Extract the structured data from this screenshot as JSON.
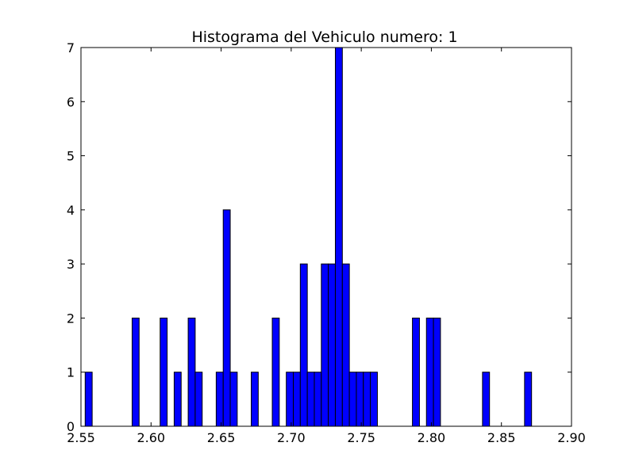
{
  "chart_data": {
    "type": "bar",
    "title": "Histograma del Vehiculo numero: 1",
    "xlabel": "",
    "ylabel": "",
    "xlim": [
      2.55,
      2.9
    ],
    "ylim": [
      0,
      7
    ],
    "x_ticks": [
      "2.55",
      "2.60",
      "2.65",
      "2.70",
      "2.75",
      "2.80",
      "2.85",
      "2.90"
    ],
    "y_ticks": [
      "0",
      "1",
      "2",
      "3",
      "4",
      "5",
      "6",
      "7"
    ],
    "bar_color": "#0000ff",
    "grid": false,
    "bin_width": 0.005,
    "bins": [
      {
        "x": 2.553,
        "count": 1
      },
      {
        "x": 2.5865,
        "count": 2
      },
      {
        "x": 2.6065,
        "count": 2
      },
      {
        "x": 2.6165,
        "count": 1
      },
      {
        "x": 2.6265,
        "count": 2
      },
      {
        "x": 2.6315,
        "count": 1
      },
      {
        "x": 2.6465,
        "count": 1
      },
      {
        "x": 2.6515,
        "count": 4
      },
      {
        "x": 2.6565,
        "count": 1
      },
      {
        "x": 2.6715,
        "count": 1
      },
      {
        "x": 2.6865,
        "count": 2
      },
      {
        "x": 2.6965,
        "count": 1
      },
      {
        "x": 2.7015,
        "count": 1
      },
      {
        "x": 2.7065,
        "count": 3
      },
      {
        "x": 2.7115,
        "count": 1
      },
      {
        "x": 2.7165,
        "count": 1
      },
      {
        "x": 2.7215,
        "count": 3
      },
      {
        "x": 2.7265,
        "count": 3
      },
      {
        "x": 2.7315,
        "count": 7
      },
      {
        "x": 2.7365,
        "count": 3
      },
      {
        "x": 2.7415,
        "count": 1
      },
      {
        "x": 2.7465,
        "count": 1
      },
      {
        "x": 2.7515,
        "count": 1
      },
      {
        "x": 2.7565,
        "count": 1
      },
      {
        "x": 2.7865,
        "count": 2
      },
      {
        "x": 2.7965,
        "count": 2
      },
      {
        "x": 2.8015,
        "count": 2
      },
      {
        "x": 2.8365,
        "count": 1
      },
      {
        "x": 2.8665,
        "count": 1
      }
    ]
  }
}
